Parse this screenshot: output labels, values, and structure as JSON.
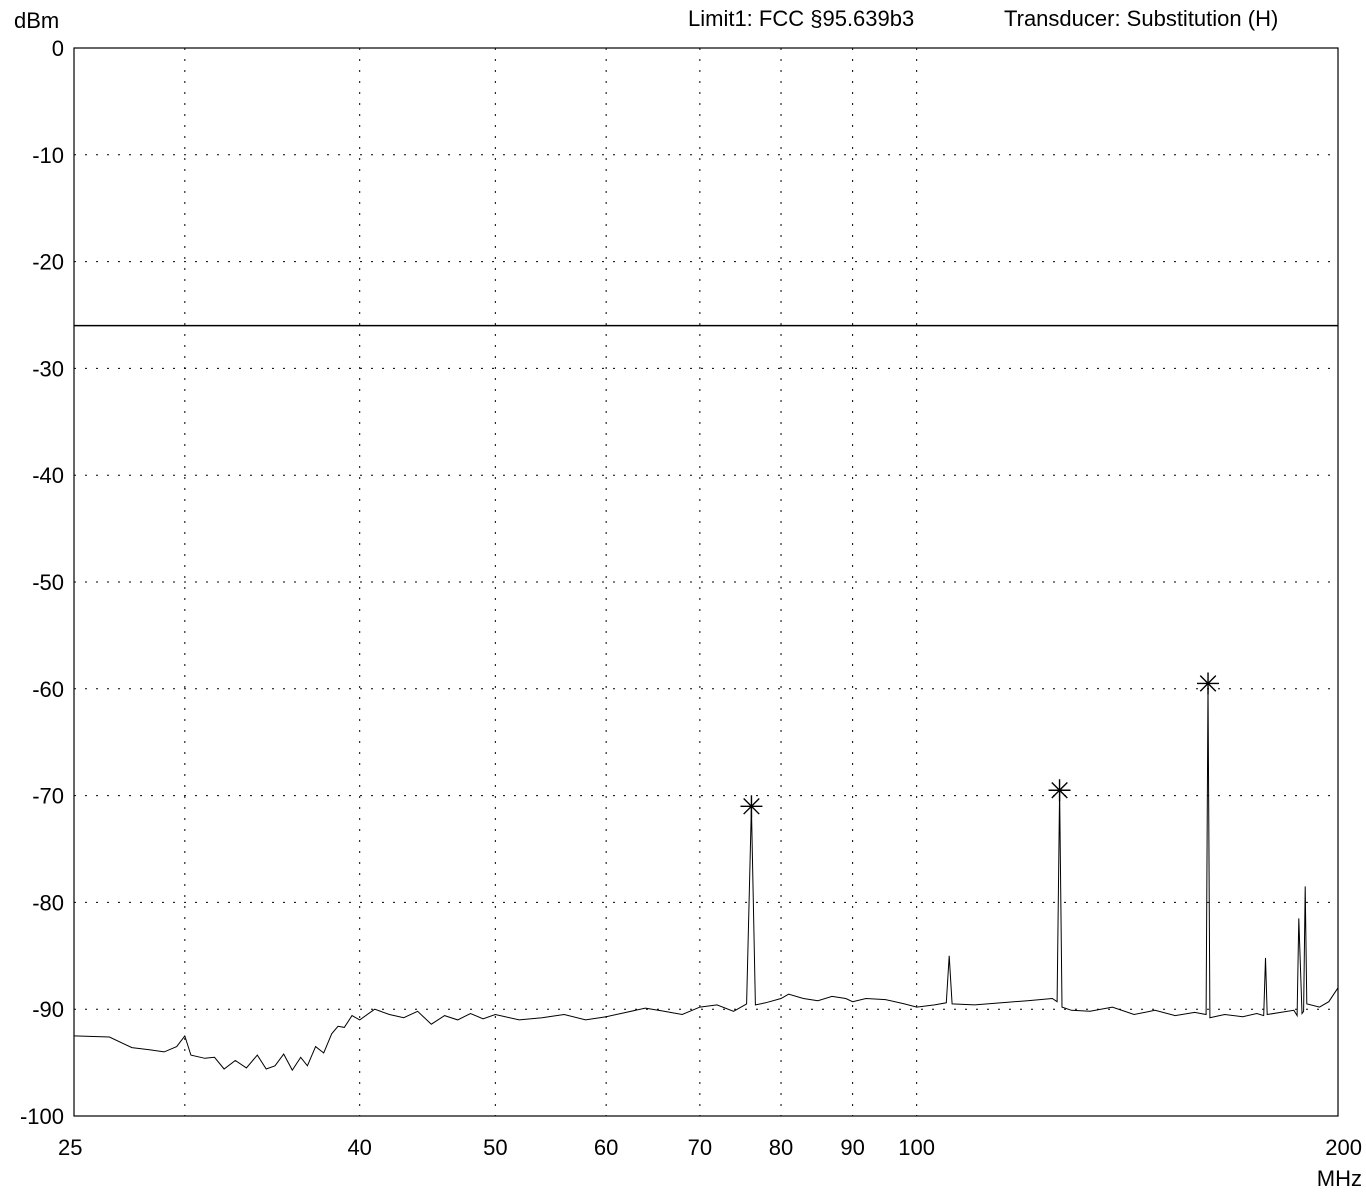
{
  "header": {
    "limit_label": "Limit1: FCC §95.639b3",
    "transducer_label": "Transducer: Substitution (H)"
  },
  "chart_data": {
    "type": "line",
    "ylabel": "dBm",
    "xunit": "MHz",
    "x_scale": "log",
    "xlim": [
      25,
      200
    ],
    "ylim": [
      -100,
      0
    ],
    "grid": true,
    "x_ticks": [
      25,
      40,
      50,
      60,
      70,
      80,
      90,
      100,
      200
    ],
    "x_grid": [
      30,
      40,
      50,
      60,
      70,
      80,
      90,
      100
    ],
    "y_ticks": [
      0,
      -10,
      -20,
      -30,
      -40,
      -50,
      -60,
      -70,
      -80,
      -90,
      -100
    ],
    "limit_line": {
      "value": -26
    },
    "markers": [
      {
        "x": 76.2,
        "y": -71
      },
      {
        "x": 126.5,
        "y": -69.5
      },
      {
        "x": 161.5,
        "y": -59.5
      }
    ],
    "series": [
      {
        "x": [
          25,
          26.5,
          27.5,
          28.3,
          29.0,
          29.6,
          30.0,
          30.3,
          31.0,
          31.5,
          32.0,
          32.6,
          33.2,
          33.8,
          34.3,
          34.8,
          35.3,
          35.8,
          36.3,
          36.7,
          37.2,
          37.7,
          38.2,
          38.6,
          39.0,
          39.5,
          40.0,
          41.0,
          42.0,
          43.0,
          44.0,
          45.0,
          46.0,
          47.0,
          48.0,
          49.0,
          50.0,
          52.0,
          54.0,
          56.0,
          58.0,
          60.0,
          62.0,
          64.0,
          66.0,
          68.0,
          70.0,
          72.0,
          74.0,
          75.6,
          76.2,
          76.7,
          78.0,
          80.0,
          81.0,
          83.0,
          85.0,
          87.0,
          89.0,
          90.0,
          92.0,
          95.0,
          98.0,
          100.0,
          103.0,
          105.0,
          105.5,
          106.0,
          110.0,
          115.0,
          120.0,
          125.0,
          126.0,
          126.5,
          127.0,
          129.0,
          133.0,
          138.0,
          143.0,
          148.0,
          153.0,
          158.0,
          161.0,
          161.5,
          162.0,
          166.0,
          171.0,
          175.0,
          177.0,
          177.5,
          178.0,
          182.0,
          186.0,
          187.0,
          187.5,
          188.5,
          189.0,
          189.5,
          190.0,
          194.0,
          197.0,
          200.0
        ],
        "y": [
          -92.5,
          -92.6,
          -93.6,
          -93.8,
          -94.0,
          -93.5,
          -92.5,
          -94.3,
          -94.6,
          -94.5,
          -95.6,
          -94.8,
          -95.5,
          -94.3,
          -95.6,
          -95.3,
          -94.2,
          -95.7,
          -94.5,
          -95.3,
          -93.5,
          -94.1,
          -92.3,
          -91.6,
          -91.7,
          -90.6,
          -91.0,
          -90.0,
          -90.5,
          -90.8,
          -90.2,
          -91.4,
          -90.6,
          -91.0,
          -90.4,
          -90.9,
          -90.5,
          -91.0,
          -90.8,
          -90.5,
          -91.0,
          -90.7,
          -90.3,
          -89.9,
          -90.2,
          -90.5,
          -89.8,
          -89.6,
          -90.2,
          -89.5,
          -71.0,
          -89.6,
          -89.4,
          -89.0,
          -88.6,
          -89.0,
          -89.2,
          -88.8,
          -89.0,
          -89.3,
          -89.0,
          -89.1,
          -89.5,
          -89.8,
          -89.6,
          -89.4,
          -85.0,
          -89.5,
          -89.6,
          -89.4,
          -89.2,
          -89.0,
          -89.3,
          -69.5,
          -89.8,
          -90.1,
          -90.2,
          -89.8,
          -90.5,
          -90.1,
          -90.6,
          -90.3,
          -90.5,
          -59.5,
          -90.8,
          -90.5,
          -90.7,
          -90.4,
          -90.6,
          -85.2,
          -90.5,
          -90.3,
          -90.1,
          -90.6,
          -81.5,
          -90.4,
          -90.2,
          -78.5,
          -89.5,
          -89.8,
          -89.3,
          -88.0
        ]
      }
    ]
  }
}
